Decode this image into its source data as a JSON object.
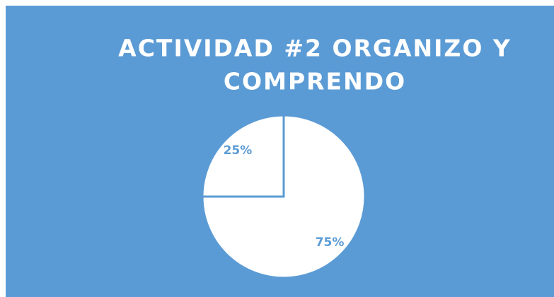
{
  "chart_data": {
    "type": "pie",
    "title": [
      "ACTIVIDAD #2 ORGANIZO Y",
      "COMPRENDO"
    ],
    "values": [
      75,
      25
    ],
    "value_labels": [
      "75%",
      "25%"
    ],
    "colors": [
      "#ffffff",
      "#ffffff"
    ],
    "background": "#5b9bd5",
    "edge_color": "#5b9bd5"
  }
}
